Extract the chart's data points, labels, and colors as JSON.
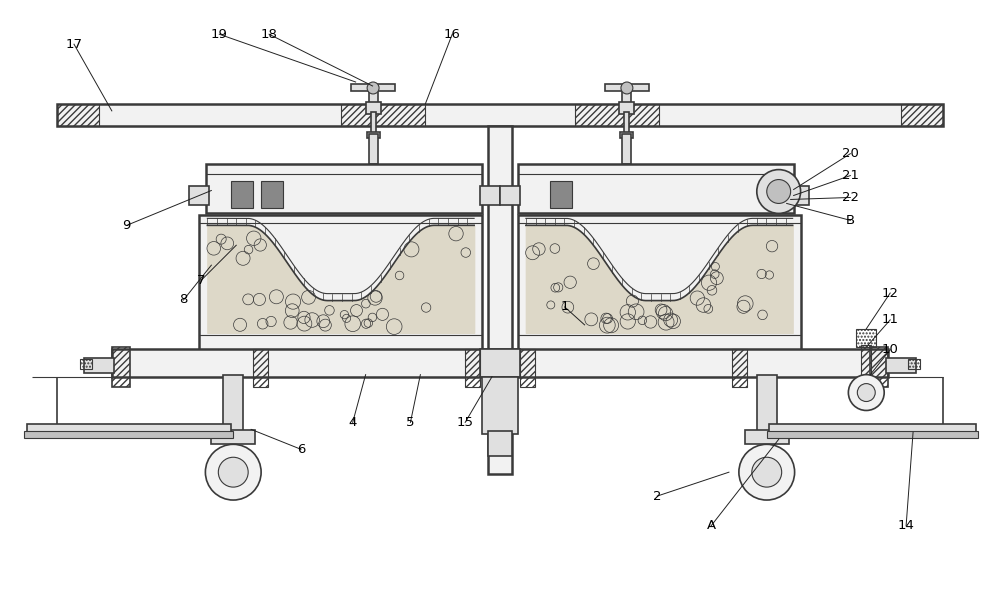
{
  "bg_color": "#ffffff",
  "line_color": "#3a3a3a",
  "label_color": "#000000",
  "fig_width": 10.0,
  "fig_height": 5.95,
  "foam_color": "#ddd8c8",
  "box_fill": "#f2f2f2",
  "gray_fill": "#e0e0e0",
  "dark_fill": "#c0c0c0",
  "hatch_fill": "#e8e8e8"
}
